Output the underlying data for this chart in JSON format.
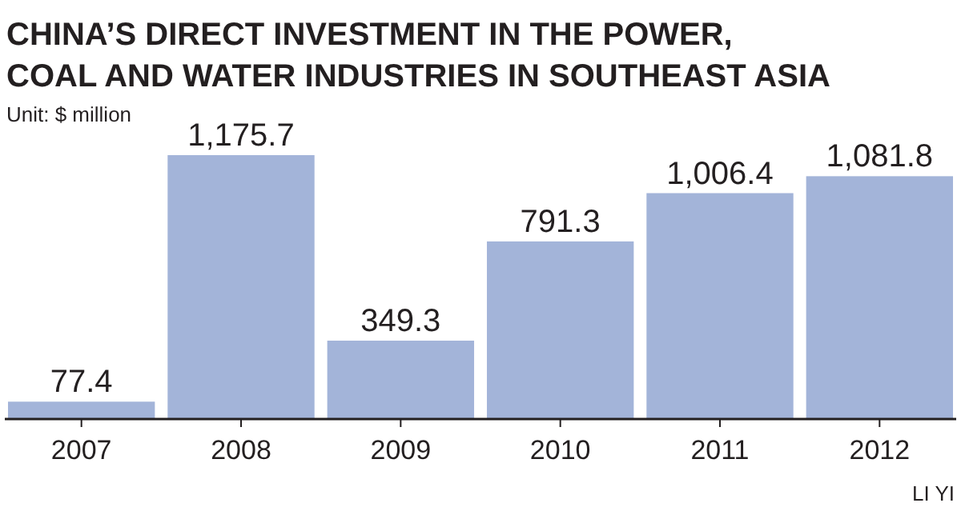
{
  "chart_data": {
    "type": "bar",
    "title": "CHINA’S DIRECT INVESTMENT IN THE POWER, COAL AND WATER INDUSTRIES IN SOUTHEAST ASIA",
    "subtitle": "Unit: $ million",
    "categories": [
      "2007",
      "2008",
      "2009",
      "2010",
      "2011",
      "2012"
    ],
    "values": [
      77.4,
      1175.7,
      349.3,
      791.3,
      1006.4,
      1081.8
    ],
    "value_labels": [
      "77.4",
      "1,175.7",
      "349.3",
      "791.3",
      "1,006.4",
      "1,081.8"
    ],
    "color": "#a3b4d9",
    "annotations": [
      "LI YI"
    ]
  }
}
